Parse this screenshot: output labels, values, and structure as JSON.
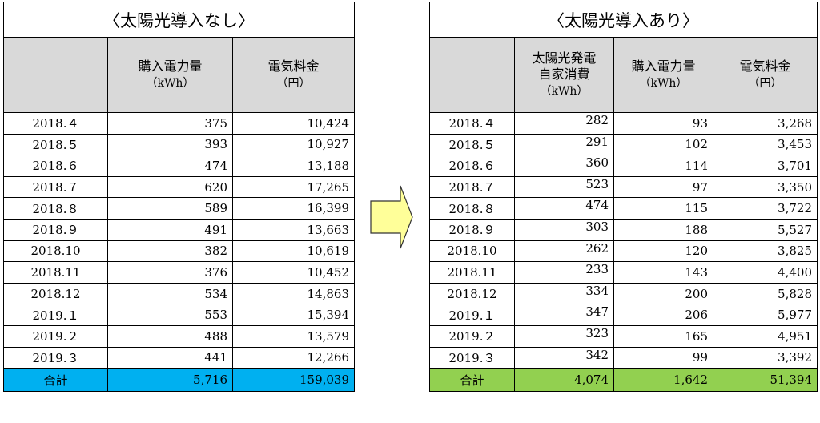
{
  "left": {
    "title": "〈太陽光導入なし〉",
    "headers": [
      "",
      "購入電力量",
      "電気料金"
    ],
    "units": [
      "",
      "（kWh）",
      "（円）"
    ],
    "rows": [
      [
        "2018.４",
        "375",
        "10,424"
      ],
      [
        "2018.５",
        "393",
        "10,927"
      ],
      [
        "2018.６",
        "474",
        "13,188"
      ],
      [
        "2018.７",
        "620",
        "17,265"
      ],
      [
        "2018.８",
        "589",
        "16,399"
      ],
      [
        "2018.９",
        "491",
        "13,663"
      ],
      [
        "2018.10",
        "382",
        "10,619"
      ],
      [
        "2018.11",
        "376",
        "10,452"
      ],
      [
        "2018.12",
        "534",
        "14,863"
      ],
      [
        "2019.１",
        "553",
        "15,394"
      ],
      [
        "2019.２",
        "488",
        "13,579"
      ],
      [
        "2019.３",
        "441",
        "12,266"
      ]
    ],
    "total": [
      "合計",
      "5,716",
      "159,039"
    ]
  },
  "right": {
    "title": "〈太陽光導入あり〉",
    "headers": [
      "",
      "太陽光発電自家消費",
      "購入電力量",
      "電気料金"
    ],
    "header_lines": {
      "solar_line1": "太陽光発電",
      "solar_line2": "自家消費"
    },
    "units": [
      "",
      "（kWh）",
      "（kWh）",
      "（円）"
    ],
    "rows": [
      [
        "2018.４",
        "282",
        "93",
        "3,268"
      ],
      [
        "2018.５",
        "291",
        "102",
        "3,453"
      ],
      [
        "2018.６",
        "360",
        "114",
        "3,701"
      ],
      [
        "2018.７",
        "523",
        "97",
        "3,350"
      ],
      [
        "2018.８",
        "474",
        "115",
        "3,722"
      ],
      [
        "2018.９",
        "303",
        "188",
        "5,527"
      ],
      [
        "2018.10",
        "262",
        "120",
        "3,825"
      ],
      [
        "2018.11",
        "233",
        "143",
        "4,400"
      ],
      [
        "2018.12",
        "334",
        "200",
        "5,828"
      ],
      [
        "2019.１",
        "347",
        "206",
        "5,977"
      ],
      [
        "2019.２",
        "323",
        "165",
        "4,951"
      ],
      [
        "2019.３",
        "342",
        "99",
        "3,392"
      ]
    ],
    "total": [
      "合計",
      "4,074",
      "1,642",
      "51,394"
    ]
  },
  "colors": {
    "header_bg": "#d9d9d9",
    "left_total_bg": "#00b0f0",
    "right_total_bg": "#92d050",
    "arrow_fill": "#ffff99"
  },
  "arrow_icon": "right-arrow-icon"
}
